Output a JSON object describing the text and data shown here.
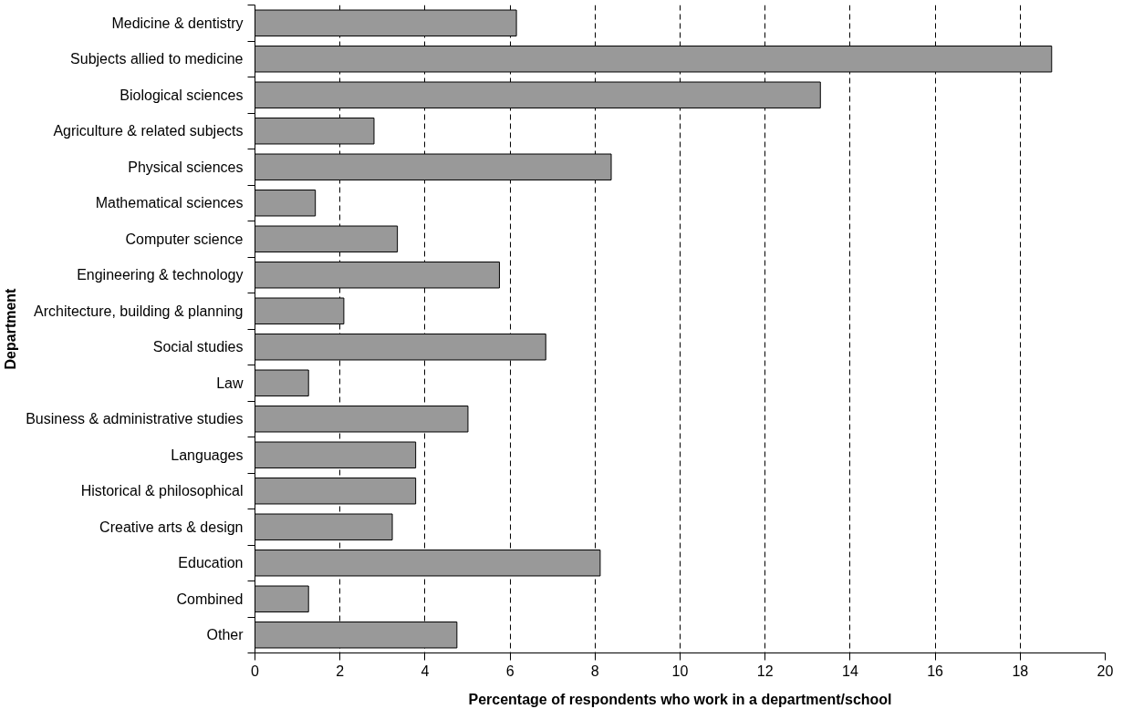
{
  "chart_data": {
    "type": "bar",
    "orientation": "horizontal",
    "xlabel": "Percentage of respondents who work in a department/school",
    "ylabel": "Department",
    "categories": [
      "Medicine & dentistry",
      "Subjects allied to medicine",
      "Biological sciences",
      "Agriculture & related subjects",
      "Physical sciences",
      "Mathematical sciences",
      "Computer science",
      "Engineering & technology",
      "Architecture, building & planning",
      "Social studies",
      "Law",
      "Business & administrative studies",
      "Languages",
      "Historical & philosophical",
      "Creative arts & design",
      "Education",
      "Combined",
      "Other"
    ],
    "series": [
      {
        "color": "#999999",
        "values": [
          6.15,
          18.74,
          13.3,
          2.8,
          8.38,
          1.42,
          3.35,
          5.75,
          2.09,
          6.84,
          1.26,
          5.01,
          3.78,
          3.78,
          3.23,
          8.12,
          1.26,
          4.75
        ]
      }
    ],
    "xlim": [
      0,
      20
    ],
    "xticks": [
      0,
      2,
      4,
      6,
      8,
      10,
      12,
      14,
      16,
      18,
      20
    ],
    "grid": "x"
  }
}
